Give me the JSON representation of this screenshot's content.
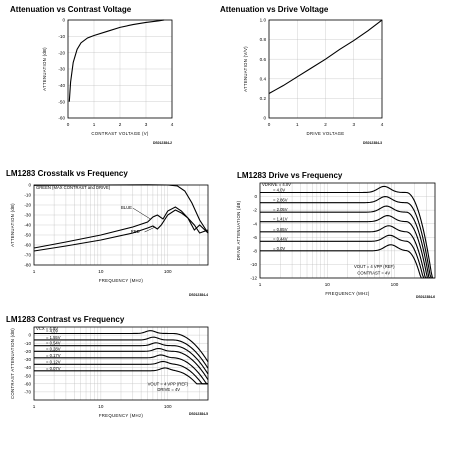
{
  "chart_data": [
    {
      "id": "c1",
      "type": "line",
      "title": "Attenuation vs Contrast Voltage",
      "xlabel": "CONTRAST VOLTAGE (V)",
      "ylabel": "ATTENUATION (dB)",
      "figcode": "DS012384-2",
      "xlim": [
        0,
        4
      ],
      "ylim": [
        -60,
        0
      ],
      "xscale": "linear",
      "xticks": [
        "0",
        "1",
        "2",
        "3",
        "4"
      ],
      "yticks": [
        "0",
        "-10",
        "-20",
        "-30",
        "-40",
        "-50",
        "-60"
      ],
      "series": [
        {
          "x": [
            0.05,
            0.1,
            0.2,
            0.35,
            0.5,
            0.75,
            1.0,
            1.5,
            2.0,
            2.5,
            3.0,
            3.5,
            3.7
          ],
          "values": [
            -50,
            -38,
            -26,
            -18,
            -14,
            -11,
            -9.5,
            -7,
            -4.5,
            -2.8,
            -1.5,
            -0.5,
            0
          ]
        }
      ]
    },
    {
      "id": "c2",
      "type": "line",
      "title": "Attenuation vs Drive Voltage",
      "xlabel": "DRIVE VOLTAGE",
      "ylabel": "ATTENUATION (V/V)",
      "figcode": "DS012384-3",
      "xlim": [
        0,
        4
      ],
      "ylim": [
        0,
        1
      ],
      "xscale": "linear",
      "xticks": [
        "0",
        "1",
        "2",
        "3",
        "4"
      ],
      "yticks": [
        "1.0",
        "0.8",
        "0.6",
        "0.4",
        "0.2",
        "0"
      ],
      "series": [
        {
          "x": [
            0,
            0.25,
            0.5,
            1.0,
            1.5,
            2.0,
            2.5,
            3.0,
            3.5,
            4.0
          ],
          "values": [
            0.25,
            0.29,
            0.33,
            0.42,
            0.51,
            0.6,
            0.7,
            0.79,
            0.89,
            1.0
          ]
        }
      ]
    },
    {
      "id": "c3",
      "type": "line",
      "title": "LM1283 Crosstalk vs Frequency",
      "xlabel": "FREQUENCY (MHz)",
      "ylabel": "ATTENUATION (dB)",
      "figcode": "DS012384-4",
      "xlim": [
        1,
        400
      ],
      "ylim": [
        -80,
        0
      ],
      "xscale": "log",
      "xticks": [
        "1",
        "10",
        "100"
      ],
      "yticks": [
        "0",
        "-10",
        "-20",
        "-30",
        "-40",
        "-50",
        "-60",
        "-70",
        "-80"
      ],
      "annotations": [
        "GREEN (MAX CONTRAST and DRIVE)",
        "BLUE",
        "RED"
      ],
      "series": [
        {
          "name": "GREEN (MAX CONTRAST and DRIVE)",
          "x": [
            1,
            10,
            50,
            100,
            140,
            180,
            230,
            300,
            400
          ],
          "values": [
            -0.3,
            0,
            0.2,
            0,
            -1,
            -6,
            -18,
            -35,
            -48
          ]
        },
        {
          "name": "BLUE",
          "x": [
            1,
            3,
            10,
            30,
            50,
            60,
            70,
            85,
            100,
            130,
            160,
            200,
            250,
            300,
            400
          ],
          "values": [
            -63,
            -57,
            -50,
            -42,
            -37,
            -32,
            -30,
            -34,
            -26,
            -22,
            -26,
            -33,
            -40,
            -48,
            -45
          ]
        },
        {
          "name": "RED",
          "x": [
            1,
            3,
            10,
            30,
            50,
            60,
            70,
            80,
            100,
            130,
            160,
            200,
            250,
            300,
            400
          ],
          "values": [
            -66,
            -61,
            -55,
            -48,
            -43,
            -41,
            -44,
            -40,
            -30,
            -25,
            -28,
            -33,
            -45,
            -40,
            -48
          ]
        }
      ]
    },
    {
      "id": "c4",
      "type": "line",
      "title": "LM1283 Drive vs Frequency",
      "xlabel": "FREQUENCY (MHz)",
      "ylabel": "DRIVE ATTENUATION (dB)",
      "figcode": "DS012384-6",
      "xlim": [
        1,
        400
      ],
      "ylim": [
        -12,
        2
      ],
      "xscale": "log",
      "xticks": [
        "1",
        "10",
        "100"
      ],
      "yticks": [
        "0",
        "-2",
        "-4",
        "-6",
        "-8",
        "-10",
        "-12"
      ],
      "legend_header": "VDRIVE = 4.0V",
      "annotations": [
        "VOUT = 4 VPP (REF)",
        "CONTRAST = 4V"
      ],
      "series": [
        {
          "name": "4.0V",
          "level": 0.6
        },
        {
          "name": "2.86V",
          "level": -0.9
        },
        {
          "name": "2.05V",
          "level": -2.3
        },
        {
          "name": "1.41V",
          "level": -3.7
        },
        {
          "name": "0.85V",
          "level": -5.2
        },
        {
          "name": "0.44V",
          "level": -6.6
        },
        {
          "name": "0.0V",
          "level": -8.0
        }
      ]
    },
    {
      "id": "c5",
      "type": "line",
      "title": "LM1283 Contrast vs Frequency",
      "xlabel": "FREQUENCY (MHz)",
      "ylabel": "CONTRAST ATTENUATION (dB)",
      "figcode": "DS012384-5",
      "xlim": [
        1,
        400
      ],
      "ylim": [
        -80,
        10
      ],
      "xscale": "log",
      "xticks": [
        "1",
        "10",
        "100"
      ],
      "yticks": [
        "0",
        "-10",
        "-20",
        "-30",
        "-40",
        "-50",
        "-60",
        "-70"
      ],
      "legend_header": "VCX = 4.0V",
      "annotations": [
        "VOUT = 4 VPP (REF)",
        "DRIVE = 4V"
      ],
      "series": [
        {
          "name": "4.0V",
          "level": 2
        },
        {
          "name": "1.55V",
          "level": -6
        },
        {
          "name": "0.54V",
          "level": -13
        },
        {
          "name": "0.28V",
          "level": -20
        },
        {
          "name": "0.17V",
          "level": -28
        },
        {
          "name": "0.12V",
          "level": -36
        },
        {
          "name": "0.07V",
          "level": -44
        }
      ]
    }
  ]
}
